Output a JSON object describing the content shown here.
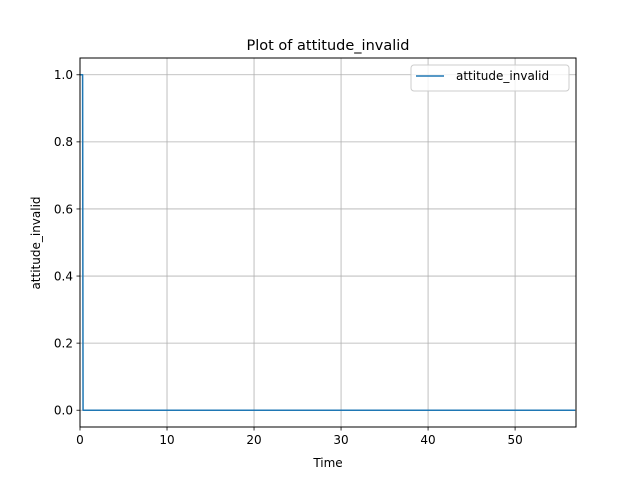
{
  "chart_data": {
    "type": "line",
    "title": "Plot of attitude_invalid",
    "xlabel": "Time",
    "ylabel": "attitude_invalid",
    "xlim": [
      0,
      57
    ],
    "ylim": [
      -0.05,
      1.05
    ],
    "xticks": [
      0,
      10,
      20,
      30,
      40,
      50
    ],
    "yticks": [
      0.0,
      0.2,
      0.4,
      0.6,
      0.8,
      1.0
    ],
    "xtick_labels": [
      "0",
      "10",
      "20",
      "30",
      "40",
      "50"
    ],
    "ytick_labels": [
      "0.0",
      "0.2",
      "0.4",
      "0.6",
      "0.8",
      "1.0"
    ],
    "grid": true,
    "legend_position": "top-right",
    "series": [
      {
        "name": "attitude_invalid",
        "color": "#1f77b4",
        "x": [
          0.0,
          0.3,
          0.35,
          10,
          20,
          30,
          40,
          50,
          56.9
        ],
        "y": [
          1.0,
          1.0,
          0.0,
          0.0,
          0.0,
          0.0,
          0.0,
          0.0,
          0.0
        ]
      }
    ]
  }
}
